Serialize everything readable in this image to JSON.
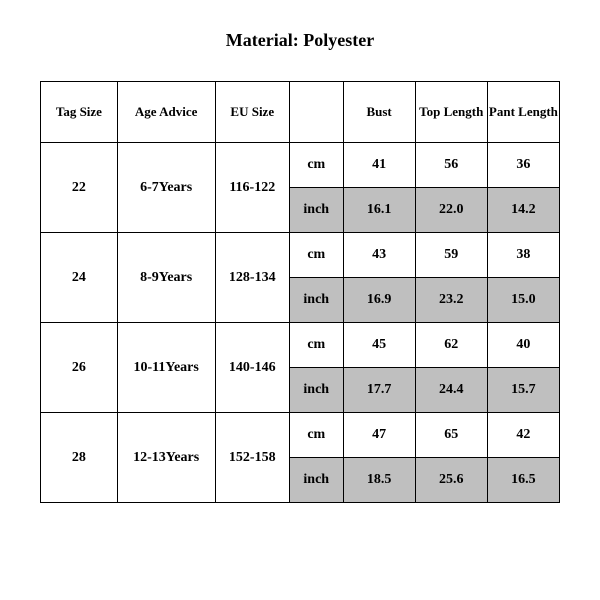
{
  "title": "Material: Polyester",
  "table": {
    "columns": {
      "tag_size": "Tag Size",
      "age_advice": "Age Advice",
      "eu_size": "EU Size",
      "unit_blank": "",
      "bust": "Bust",
      "top_length": "Top Length",
      "pant_length": "Pant Length"
    },
    "units": {
      "cm": "cm",
      "inch": "inch"
    },
    "rows": [
      {
        "tag_size": "22",
        "age_advice": "6-7Years",
        "eu_size": "116-122",
        "cm": {
          "bust": "41",
          "top_length": "56",
          "pant_length": "36"
        },
        "inch": {
          "bust": "16.1",
          "top_length": "22.0",
          "pant_length": "14.2"
        }
      },
      {
        "tag_size": "24",
        "age_advice": "8-9Years",
        "eu_size": "128-134",
        "cm": {
          "bust": "43",
          "top_length": "59",
          "pant_length": "38"
        },
        "inch": {
          "bust": "16.9",
          "top_length": "23.2",
          "pant_length": "15.0"
        }
      },
      {
        "tag_size": "26",
        "age_advice": "10-11Years",
        "eu_size": "140-146",
        "cm": {
          "bust": "45",
          "top_length": "62",
          "pant_length": "40"
        },
        "inch": {
          "bust": "17.7",
          "top_length": "24.4",
          "pant_length": "15.7"
        }
      },
      {
        "tag_size": "28",
        "age_advice": "12-13Years",
        "eu_size": "152-158",
        "cm": {
          "bust": "47",
          "top_length": "65",
          "pant_length": "42"
        },
        "inch": {
          "bust": "18.5",
          "top_length": "25.6",
          "pant_length": "16.5"
        }
      }
    ],
    "style": {
      "background_color": "#ffffff",
      "border_color": "#000000",
      "shaded_color": "#bfbfbf",
      "text_color": "#000000",
      "header_fontsize": 13,
      "cell_fontsize": 14,
      "title_fontsize": 18,
      "font_family": "Times New Roman"
    }
  }
}
